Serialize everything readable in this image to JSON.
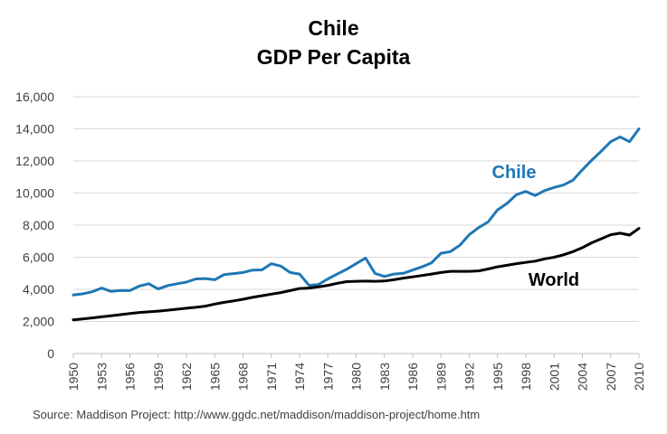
{
  "chart_data": {
    "type": "line",
    "title": "Chile",
    "subtitle": "GDP Per Capita",
    "xlabel": "",
    "ylabel": "",
    "ylim": [
      0,
      16000
    ],
    "yticks": [
      0,
      2000,
      4000,
      6000,
      8000,
      10000,
      12000,
      14000,
      16000
    ],
    "ytick_labels": [
      "0",
      "2,000",
      "4,000",
      "6,000",
      "8,000",
      "10,000",
      "12,000",
      "14,000",
      "16,000"
    ],
    "xlim": [
      1950,
      2010
    ],
    "xticks": [
      1950,
      1953,
      1956,
      1959,
      1962,
      1965,
      1968,
      1971,
      1974,
      1977,
      1980,
      1983,
      1986,
      1989,
      1992,
      1995,
      1998,
      2001,
      2004,
      2007,
      2010
    ],
    "grid": "horizontal",
    "legend": "inline labels",
    "x": [
      1950,
      1951,
      1952,
      1953,
      1954,
      1955,
      1956,
      1957,
      1958,
      1959,
      1960,
      1961,
      1962,
      1963,
      1964,
      1965,
      1966,
      1967,
      1968,
      1969,
      1970,
      1971,
      1972,
      1973,
      1974,
      1975,
      1976,
      1977,
      1978,
      1979,
      1980,
      1981,
      1982,
      1983,
      1984,
      1985,
      1986,
      1987,
      1988,
      1989,
      1990,
      1991,
      1992,
      1993,
      1994,
      1995,
      1996,
      1997,
      1998,
      1999,
      2000,
      2001,
      2002,
      2003,
      2004,
      2005,
      2006,
      2007,
      2008,
      2009,
      2010
    ],
    "series": [
      {
        "name": "Chile",
        "color": "#1f77b4",
        "values": [
          3650,
          3720,
          3850,
          4080,
          3870,
          3930,
          3920,
          4200,
          4350,
          4020,
          4230,
          4350,
          4450,
          4650,
          4670,
          4600,
          4920,
          4980,
          5050,
          5200,
          5210,
          5600,
          5450,
          5050,
          4950,
          4250,
          4300,
          4650,
          4950,
          5250,
          5600,
          5950,
          5000,
          4800,
          4950,
          5000,
          5200,
          5400,
          5650,
          6250,
          6350,
          6750,
          7400,
          7850,
          8200,
          8950,
          9350,
          9900,
          10100,
          9850,
          10150,
          10350,
          10500,
          10800,
          11450,
          12050,
          12600,
          13200,
          13500,
          13200,
          14000
        ]
      },
      {
        "name": "World",
        "color": "#000000",
        "values": [
          2100,
          2160,
          2220,
          2290,
          2350,
          2420,
          2490,
          2560,
          2600,
          2640,
          2700,
          2760,
          2820,
          2880,
          2950,
          3080,
          3190,
          3280,
          3380,
          3500,
          3600,
          3700,
          3800,
          3920,
          4050,
          4080,
          4150,
          4250,
          4380,
          4480,
          4500,
          4510,
          4500,
          4520,
          4600,
          4700,
          4780,
          4860,
          4950,
          5050,
          5120,
          5120,
          5120,
          5150,
          5270,
          5400,
          5500,
          5600,
          5680,
          5760,
          5900,
          6000,
          6150,
          6350,
          6600,
          6900,
          7150,
          7400,
          7500,
          7380,
          7800
        ]
      }
    ]
  },
  "source": "Source:  Maddison Project: http://www.ggdc.net/maddison/maddison-project/home.htm"
}
